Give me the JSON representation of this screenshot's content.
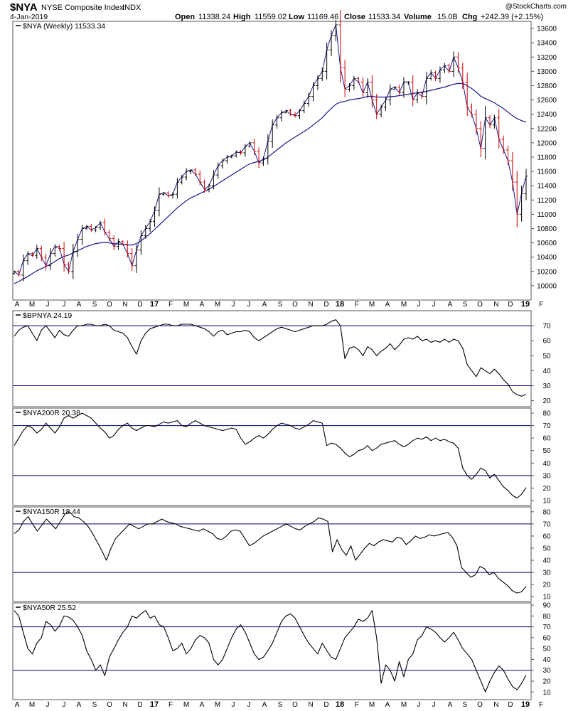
{
  "header": {
    "symbol": "$NYA",
    "name": "NYSE Composite Index",
    "exchange": "INDX",
    "date": "4-Jan-2019",
    "copyright": "@StockCharts.com",
    "open_label": "Open",
    "open": "11338.24",
    "high_label": "High",
    "high": "11559.02",
    "low_label": "Low",
    "low": "11169.46",
    "close_label": "Close",
    "close": "11533.34",
    "volume_label": "Volume",
    "volume": "15.0B",
    "chg_label": "Chg",
    "chg": "+242.39 (+2.15%)"
  },
  "x_axis": {
    "labels": [
      "A",
      "M",
      "J",
      "J",
      "A",
      "S",
      "O",
      "N",
      "D",
      "17",
      "F",
      "M",
      "A",
      "M",
      "J",
      "J",
      "A",
      "S",
      "O",
      "N",
      "D",
      "18",
      "F",
      "M",
      "A",
      "M",
      "J",
      "J",
      "A",
      "S",
      "O",
      "N",
      "D",
      "19",
      "F"
    ],
    "bold_labels": [
      "17",
      "18",
      "19"
    ]
  },
  "colors": {
    "price_bar_up": "#000000",
    "price_bar_down": "#cc0000",
    "moving_average": "#1a1a8c",
    "indicator_line": "#000000",
    "reference_line": "#000080",
    "border": "#555555"
  },
  "chart_data": [
    {
      "type": "ohlc",
      "label": "$NYA (Weekly) 11533.34",
      "ylim": [
        9800,
        13700
      ],
      "yticks": [
        10000,
        10200,
        10400,
        10600,
        10800,
        11000,
        11200,
        11400,
        11600,
        11800,
        12000,
        12200,
        12400,
        12600,
        12800,
        13000,
        13200,
        13400,
        13600
      ],
      "grid": false,
      "series": [
        {
          "values": [
            10200,
            10150,
            10350,
            10450,
            10420,
            10520,
            10400,
            10280,
            10450,
            10550,
            10520,
            10300,
            10200,
            10480,
            10650,
            10800,
            10830,
            10780,
            10820,
            10880,
            10750,
            10660,
            10550,
            10620,
            10580,
            10450,
            10280,
            10500,
            10700,
            10800,
            10900,
            11050,
            11280,
            11300,
            11260,
            11280,
            11450,
            11520,
            11600,
            11620,
            11560,
            11450,
            11350,
            11400,
            11550,
            11680,
            11750,
            11800,
            11820,
            11870,
            11860,
            11950,
            12000,
            11880,
            11720,
            11780,
            12020,
            12250,
            12350,
            12420,
            12450,
            12400,
            12380,
            12450,
            12550,
            12650,
            12800,
            12900,
            13000,
            13300,
            13500,
            13650,
            13050,
            12750,
            12800,
            12900,
            12850,
            12700,
            12850,
            12600,
            12400,
            12500,
            12600,
            12750,
            12780,
            12700,
            12850,
            12850,
            12600,
            12700,
            12650,
            12900,
            12980,
            12900,
            13020,
            13080,
            13000,
            13200,
            13050,
            12850,
            12500,
            12400,
            12200,
            11920,
            12350,
            12250,
            12350,
            12050,
            11900,
            11750,
            11450,
            11000,
            11290,
            11533.34
          ],
          "ma_values": [
            10030,
            10060,
            10095,
            10130,
            10170,
            10210,
            10240,
            10270,
            10300,
            10340,
            10380,
            10410,
            10430,
            10460,
            10490,
            10520,
            10550,
            10570,
            10590,
            10600,
            10610,
            10600,
            10590,
            10585,
            10580,
            10570,
            10570,
            10590,
            10630,
            10680,
            10730,
            10790,
            10850,
            10910,
            10970,
            11030,
            11090,
            11140,
            11190,
            11230,
            11260,
            11290,
            11320,
            11350,
            11390,
            11430,
            11470,
            11510,
            11550,
            11590,
            11630,
            11670,
            11705,
            11725,
            11740,
            11760,
            11800,
            11850,
            11900,
            11950,
            12000,
            12040,
            12080,
            12120,
            12160,
            12200,
            12250,
            12300,
            12350,
            12420,
            12480,
            12540,
            12570,
            12580,
            12600,
            12610,
            12620,
            12630,
            12650,
            12650,
            12640,
            12640,
            12640,
            12645,
            12650,
            12660,
            12670,
            12680,
            12690,
            12700,
            12710,
            12720,
            12735,
            12750,
            12765,
            12780,
            12800,
            12820,
            12830,
            12830,
            12800,
            12760,
            12710,
            12650,
            12620,
            12590,
            12560,
            12520,
            12480,
            12430,
            12380,
            12340,
            12310,
            12290
          ]
        }
      ]
    },
    {
      "type": "line",
      "label": "$BPNYA 24.19",
      "ylim": [
        16,
        80
      ],
      "yticks": [
        20,
        30,
        40,
        50,
        60,
        70
      ],
      "reference_lines": [
        70,
        30
      ],
      "series": [
        {
          "values": [
            63,
            67,
            69,
            70,
            65,
            60,
            67,
            70,
            66,
            62,
            67,
            64,
            63,
            67,
            70,
            70,
            71,
            71,
            70,
            70,
            71,
            70,
            67,
            66,
            65,
            62,
            56,
            51,
            60,
            65,
            68,
            69,
            70,
            71,
            71,
            70,
            70,
            71,
            71,
            71,
            70,
            69,
            68,
            66,
            63,
            66,
            67,
            64,
            65,
            66,
            66,
            67,
            66,
            62,
            60,
            62,
            64,
            66,
            68,
            69,
            68,
            67,
            66,
            67,
            68,
            69,
            70,
            70,
            70,
            71,
            73,
            74,
            70,
            48,
            55,
            56,
            54,
            50,
            56,
            54,
            50,
            53,
            55,
            58,
            54,
            57,
            61,
            62,
            61,
            63,
            60,
            61,
            59,
            60,
            59,
            61,
            59,
            61,
            60,
            55,
            44,
            40,
            36,
            42,
            40,
            38,
            41,
            38,
            34,
            31,
            26,
            24,
            23,
            24.19
          ]
        }
      ]
    },
    {
      "type": "line",
      "label": "$NYA200R 20.38",
      "ylim": [
        6,
        84
      ],
      "yticks": [
        10,
        20,
        30,
        40,
        50,
        60,
        70,
        80
      ],
      "reference_lines": [
        70,
        30
      ],
      "series": [
        {
          "values": [
            54,
            60,
            66,
            70,
            68,
            64,
            67,
            72,
            68,
            64,
            69,
            76,
            78,
            76,
            78,
            80,
            78,
            76,
            72,
            68,
            65,
            60,
            62,
            67,
            70,
            72,
            68,
            66,
            68,
            70,
            70,
            69,
            71,
            73,
            72,
            73,
            74,
            70,
            69,
            72,
            74,
            72,
            70,
            69,
            68,
            67,
            66,
            67,
            68,
            67,
            60,
            55,
            57,
            60,
            62,
            60,
            63,
            67,
            70,
            72,
            71,
            70,
            68,
            67,
            69,
            71,
            74,
            73,
            72,
            54,
            56,
            55,
            52,
            48,
            45,
            47,
            50,
            51,
            54,
            50,
            52,
            55,
            56,
            57,
            58,
            55,
            53,
            55,
            58,
            60,
            59,
            61,
            58,
            60,
            58,
            59,
            57,
            56,
            52,
            36,
            30,
            27,
            31,
            36,
            34,
            28,
            31,
            26,
            21,
            18,
            14,
            12,
            15,
            20.38
          ]
        }
      ]
    },
    {
      "type": "line",
      "label": "$NYA150R 18.44",
      "ylim": [
        6,
        84
      ],
      "yticks": [
        10,
        20,
        30,
        40,
        50,
        60,
        70,
        80
      ],
      "reference_lines": [
        70,
        30
      ],
      "series": [
        {
          "values": [
            62,
            65,
            72,
            76,
            70,
            64,
            69,
            74,
            70,
            66,
            72,
            78,
            80,
            76,
            75,
            72,
            68,
            62,
            55,
            48,
            40,
            50,
            58,
            62,
            66,
            70,
            68,
            66,
            68,
            70,
            70,
            72,
            74,
            72,
            71,
            70,
            68,
            67,
            66,
            65,
            64,
            66,
            64,
            62,
            58,
            57,
            60,
            64,
            65,
            64,
            58,
            52,
            54,
            57,
            60,
            62,
            64,
            66,
            68,
            70,
            68,
            66,
            65,
            68,
            70,
            72,
            75,
            74,
            72,
            47,
            57,
            49,
            44,
            52,
            40,
            45,
            50,
            54,
            52,
            55,
            57,
            56,
            55,
            59,
            58,
            53,
            56,
            60,
            58,
            59,
            61,
            60,
            61,
            62,
            63,
            59,
            52,
            34,
            30,
            26,
            28,
            35,
            33,
            28,
            30,
            25,
            22,
            19,
            15,
            13,
            14,
            18.44
          ]
        }
      ]
    },
    {
      "type": "line",
      "label": "$NYA50R 25.52",
      "ylim": [
        3,
        92
      ],
      "yticks": [
        10,
        20,
        30,
        40,
        50,
        60,
        70,
        80,
        90
      ],
      "reference_lines": [
        70,
        30
      ],
      "series": [
        {
          "values": [
            85,
            80,
            65,
            50,
            45,
            55,
            60,
            75,
            72,
            66,
            71,
            80,
            79,
            76,
            70,
            62,
            48,
            40,
            30,
            35,
            25,
            42,
            50,
            58,
            65,
            70,
            80,
            78,
            82,
            85,
            78,
            80,
            72,
            70,
            60,
            48,
            50,
            55,
            45,
            50,
            58,
            62,
            60,
            55,
            40,
            35,
            40,
            50,
            60,
            68,
            72,
            65,
            55,
            45,
            40,
            42,
            48,
            55,
            65,
            75,
            80,
            82,
            78,
            70,
            62,
            55,
            50,
            45,
            55,
            48,
            42,
            40,
            50,
            60,
            65,
            70,
            77,
            75,
            78,
            85,
            60,
            18,
            35,
            30,
            20,
            38,
            24,
            40,
            45,
            58,
            62,
            70,
            68,
            65,
            60,
            56,
            60,
            65,
            58,
            50,
            45,
            40,
            30,
            20,
            10,
            20,
            28,
            34,
            30,
            22,
            15,
            12,
            18,
            25.52
          ]
        }
      ]
    }
  ]
}
